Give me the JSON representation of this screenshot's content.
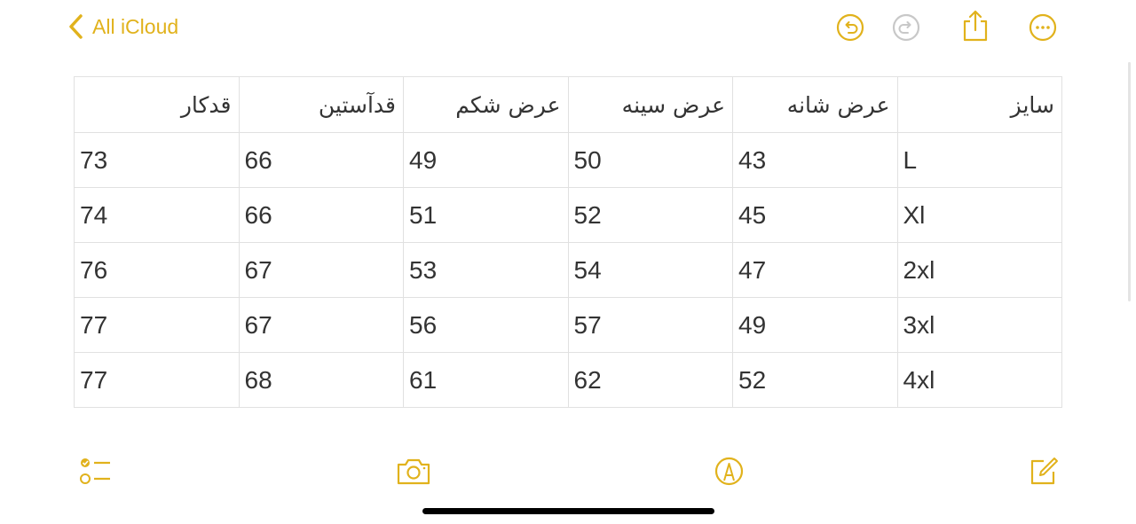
{
  "nav": {
    "back_label": "All iCloud"
  },
  "accent": "#e1b21c",
  "toolbar_top": [
    "undo-icon",
    "redo-icon",
    "share-icon",
    "more-icon"
  ],
  "toolbar_bottom": [
    "checklist-icon",
    "camera-icon",
    "markup-icon",
    "compose-icon"
  ],
  "table": {
    "headers": [
      "سایز",
      "عرض شانه",
      "عرض سینه",
      "عرض شکم",
      "قدآستین",
      "قدکار"
    ],
    "rows": [
      [
        "L",
        "43",
        "50",
        "49",
        "66",
        "73"
      ],
      [
        "Xl",
        "45",
        "52",
        "51",
        "66",
        "74"
      ],
      [
        "2xl",
        "47",
        "54",
        "53",
        "67",
        "76"
      ],
      [
        "3xl",
        "49",
        "57",
        "56",
        "67",
        "77"
      ],
      [
        "4xl",
        "52",
        "62",
        "61",
        "68",
        "77"
      ]
    ]
  }
}
